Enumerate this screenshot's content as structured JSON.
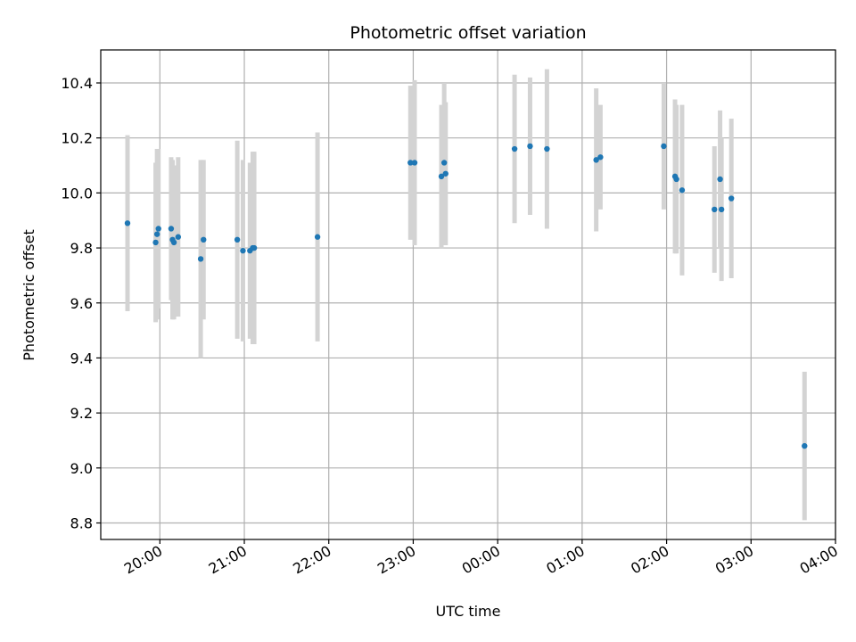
{
  "chart_data": {
    "type": "scatter",
    "title": "Photometric offset variation",
    "xlabel": "UTC time",
    "ylabel": "Photometric offset",
    "x_ticks": [
      "20:00",
      "21:00",
      "22:00",
      "23:00",
      "00:00",
      "01:00",
      "02:00",
      "03:00",
      "04:00"
    ],
    "y_ticks": [
      "8.8",
      "9.0",
      "9.2",
      "9.4",
      "9.6",
      "9.8",
      "10.0",
      "10.2",
      "10.4"
    ],
    "xlim": [
      "19:18",
      "04:00"
    ],
    "ylim": [
      8.74,
      10.52
    ],
    "grid": true,
    "error_bar_color": "#d3d3d3",
    "point_color": "#1f77b4",
    "points": [
      {
        "x": "19:37",
        "y": 9.89,
        "err": 0.32
      },
      {
        "x": "19:57",
        "y": 9.82,
        "err": 0.29
      },
      {
        "x": "19:58",
        "y": 9.85,
        "err": 0.31
      },
      {
        "x": "19:59",
        "y": 9.87,
        "err": 0.29
      },
      {
        "x": "20:08",
        "y": 9.87,
        "err": 0.26
      },
      {
        "x": "20:09",
        "y": 9.83,
        "err": 0.29
      },
      {
        "x": "20:10",
        "y": 9.82,
        "err": 0.28
      },
      {
        "x": "20:13",
        "y": 9.84,
        "err": 0.29
      },
      {
        "x": "20:29",
        "y": 9.76,
        "err": 0.36
      },
      {
        "x": "20:31",
        "y": 9.83,
        "err": 0.29
      },
      {
        "x": "20:55",
        "y": 9.83,
        "err": 0.36
      },
      {
        "x": "20:59",
        "y": 9.79,
        "err": 0.33
      },
      {
        "x": "21:04",
        "y": 9.79,
        "err": 0.32
      },
      {
        "x": "21:06",
        "y": 9.8,
        "err": 0.35
      },
      {
        "x": "21:07",
        "y": 9.8,
        "err": 0.35
      },
      {
        "x": "21:52",
        "y": 9.84,
        "err": 0.38
      },
      {
        "x": "22:58",
        "y": 10.11,
        "err": 0.28
      },
      {
        "x": "23:01",
        "y": 10.11,
        "err": 0.3
      },
      {
        "x": "23:20",
        "y": 10.06,
        "err": 0.26
      },
      {
        "x": "23:22",
        "y": 10.11,
        "err": 0.29
      },
      {
        "x": "23:23",
        "y": 10.07,
        "err": 0.26
      },
      {
        "x": "00:12",
        "y": 10.16,
        "err": 0.27
      },
      {
        "x": "00:23",
        "y": 10.17,
        "err": 0.25
      },
      {
        "x": "00:35",
        "y": 10.16,
        "err": 0.29
      },
      {
        "x": "01:10",
        "y": 10.12,
        "err": 0.26
      },
      {
        "x": "01:13",
        "y": 10.13,
        "err": 0.19
      },
      {
        "x": "01:58",
        "y": 10.17,
        "err": 0.23
      },
      {
        "x": "02:06",
        "y": 10.06,
        "err": 0.28
      },
      {
        "x": "02:07",
        "y": 10.05,
        "err": 0.27
      },
      {
        "x": "02:11",
        "y": 10.01,
        "err": 0.31
      },
      {
        "x": "02:34",
        "y": 9.94,
        "err": 0.23
      },
      {
        "x": "02:38",
        "y": 10.05,
        "err": 0.25
      },
      {
        "x": "02:39",
        "y": 9.94,
        "err": 0.26
      },
      {
        "x": "02:46",
        "y": 9.98,
        "err": 0.29
      },
      {
        "x": "03:38",
        "y": 9.08,
        "err": 0.27
      }
    ]
  }
}
